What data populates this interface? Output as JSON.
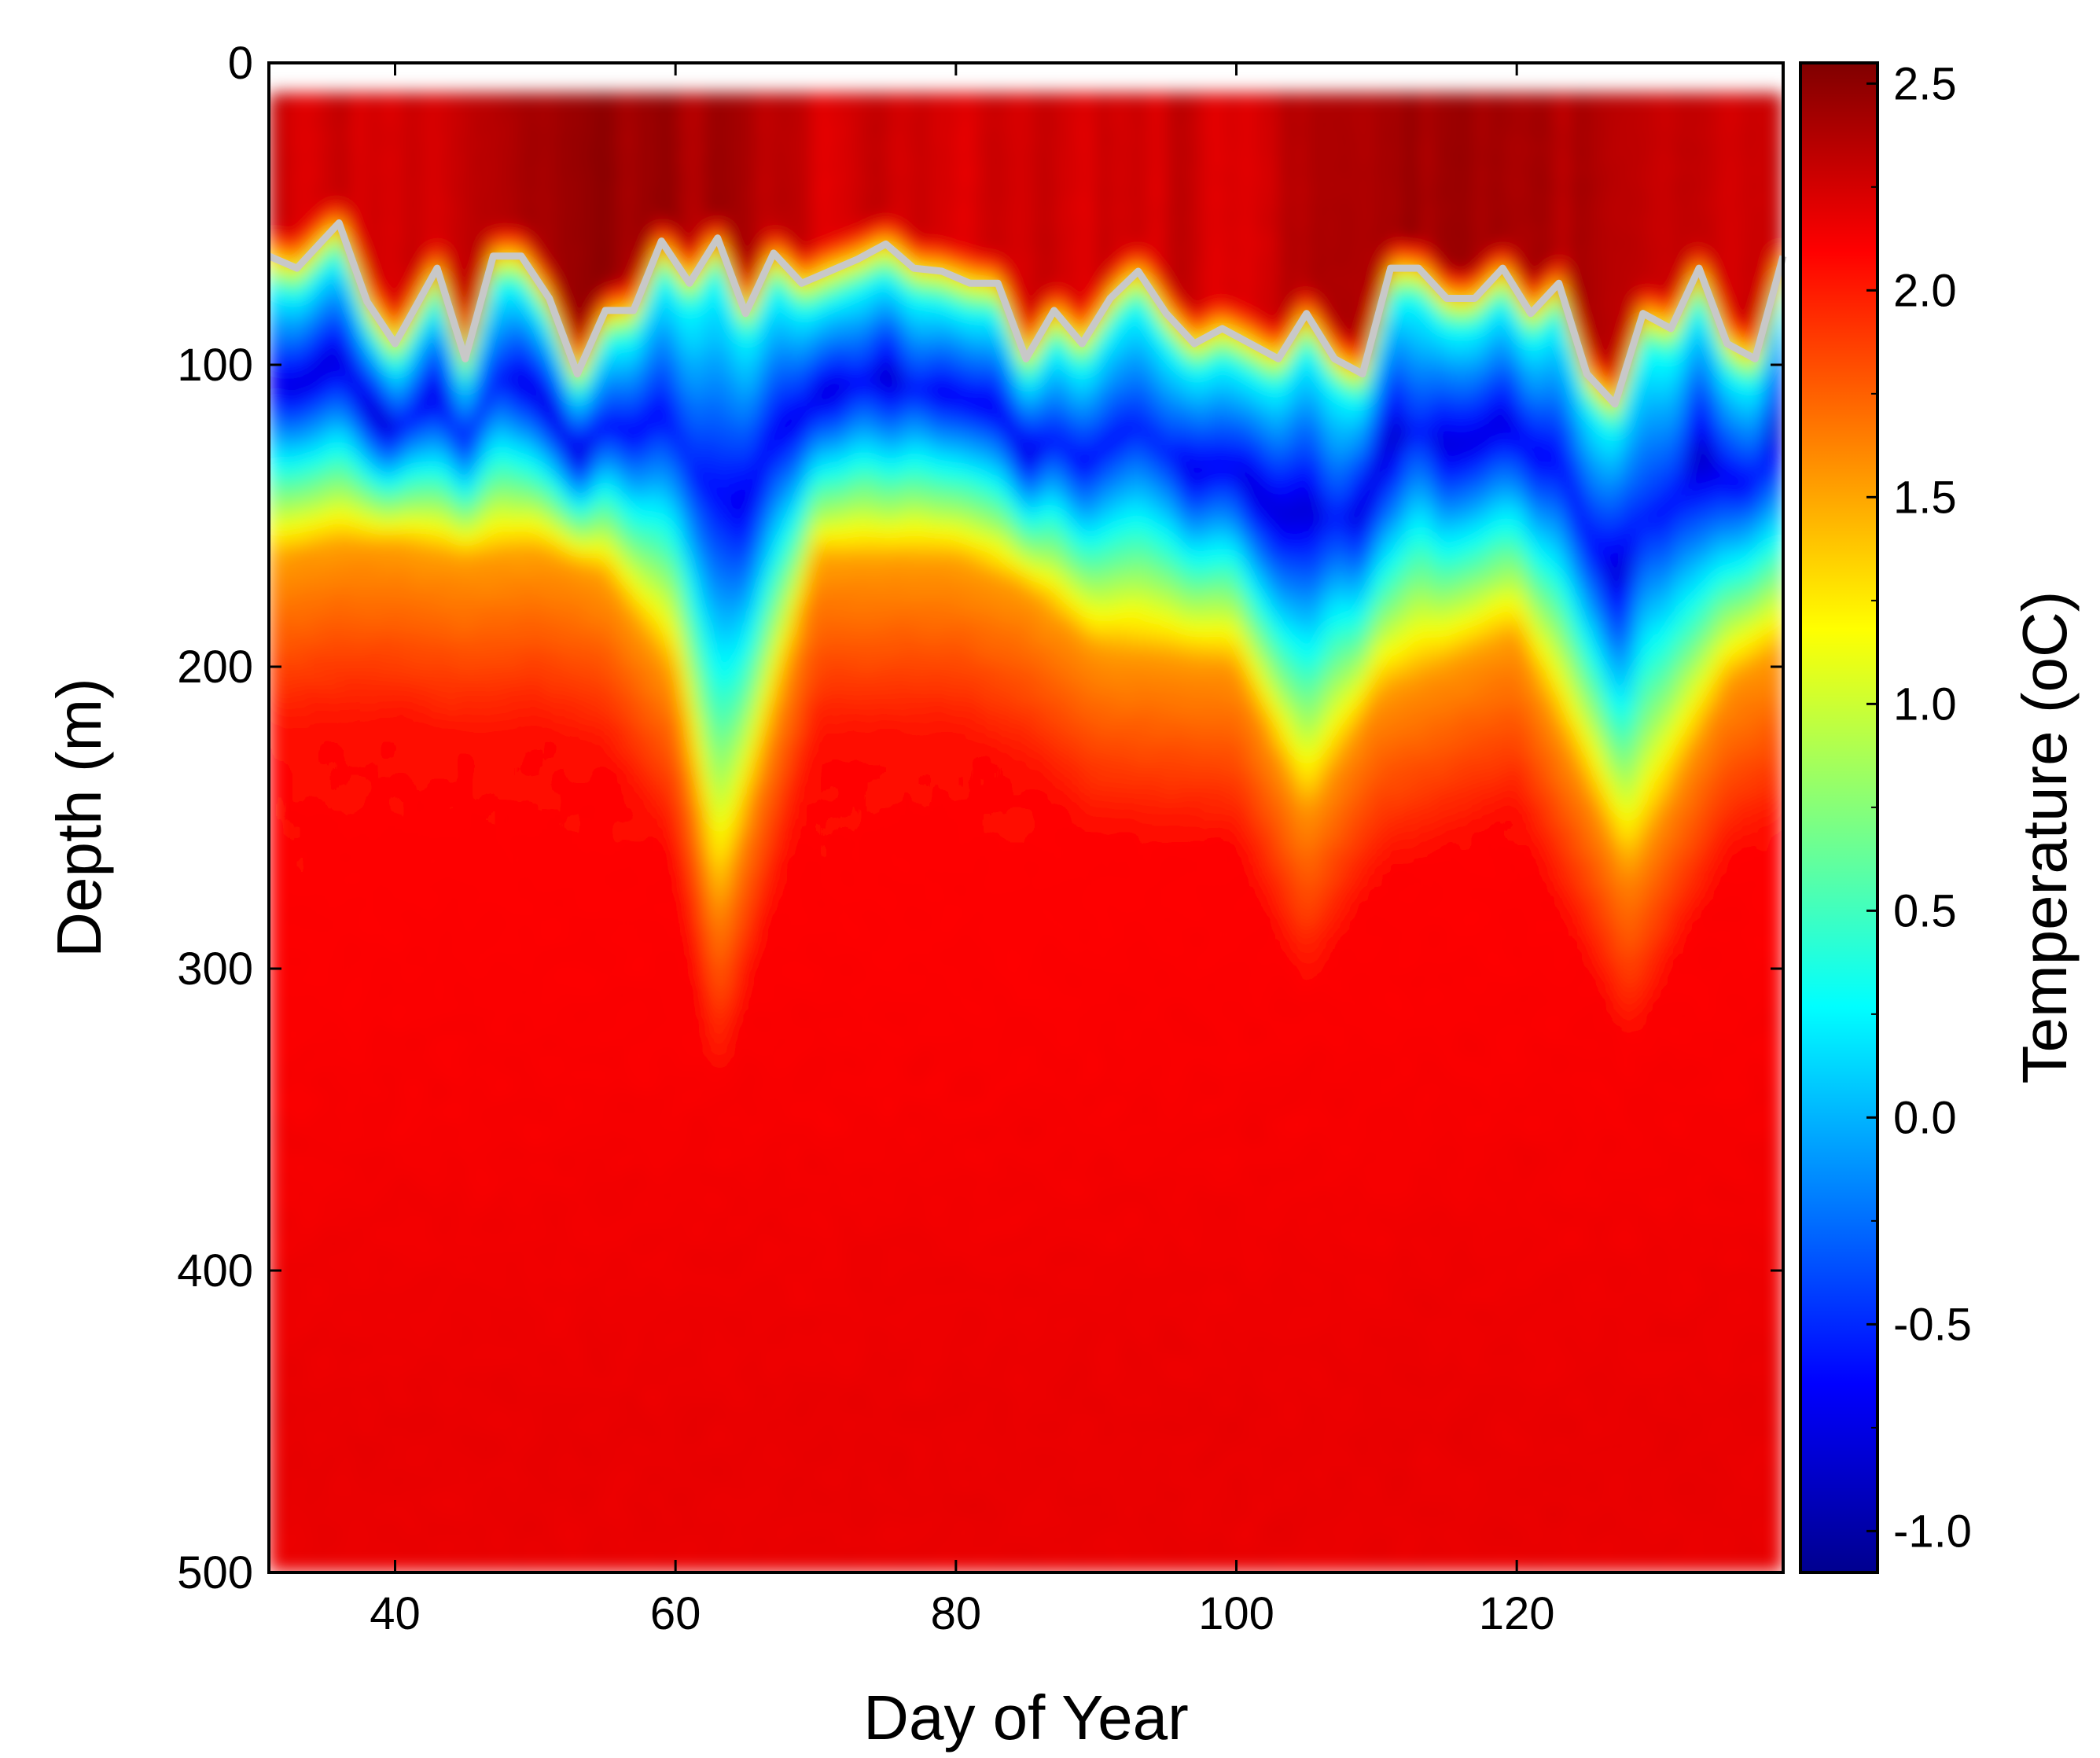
{
  "chart_data": {
    "type": "heatmap",
    "xlabel": "Day of Year",
    "ylabel": "Depth (m)",
    "colorbar_label": "Temperature (oC)",
    "xlim": [
      31,
      139
    ],
    "ylim": [
      0,
      500
    ],
    "y_inverted": true,
    "data_top_depth": 10,
    "x_ticks": [
      40,
      60,
      80,
      100,
      120
    ],
    "x_tick_labels": [
      "40",
      "60",
      "80",
      "100",
      "120"
    ],
    "y_ticks": [
      0,
      100,
      200,
      300,
      400,
      500
    ],
    "y_tick_labels": [
      "0",
      "100",
      "200",
      "300",
      "400",
      "500"
    ],
    "colorbar_range": [
      -1.1,
      2.55
    ],
    "colorbar_ticks": [
      2.5,
      2.0,
      1.5,
      1.0,
      0.5,
      0.0,
      -0.5,
      -1.0
    ],
    "colorbar_tick_labels": [
      "2.5",
      "2.0",
      "1.5",
      "1.0",
      "0.5",
      "0.0",
      "-0.5",
      "-1.0"
    ],
    "colormap": "jet",
    "mixed_layer_line_color": "#c8c8c8",
    "mixed_layer_depth": {
      "days": [
        31,
        33,
        36,
        38,
        40,
        43,
        45,
        47,
        49,
        51,
        53,
        55,
        57,
        59,
        61,
        63,
        65,
        67,
        69,
        71,
        73,
        75,
        77,
        79,
        81,
        83,
        85,
        87,
        89,
        91,
        93,
        95,
        97,
        99,
        101,
        103,
        105,
        107,
        109,
        111,
        113,
        115,
        117,
        119,
        121,
        123,
        125,
        127,
        129,
        131,
        133,
        135,
        137,
        139
      ],
      "depths": [
        64,
        68,
        53,
        79,
        93,
        68,
        98,
        64,
        64,
        78,
        103,
        82,
        82,
        59,
        73,
        58,
        83,
        63,
        73,
        69,
        65,
        60,
        68,
        69,
        73,
        73,
        98,
        82,
        93,
        78,
        69,
        83,
        93,
        88,
        93,
        98,
        83,
        98,
        103,
        68,
        68,
        78,
        78,
        68,
        83,
        73,
        103,
        113,
        83,
        88,
        68,
        93,
        98,
        64
      ]
    },
    "profiles_sample": {
      "days": [
        31,
        36,
        40,
        45,
        50,
        55,
        60,
        63,
        70,
        80,
        85,
        90,
        100,
        105,
        110,
        120,
        128,
        135,
        139
      ],
      "thermocline_bottom_depth": [
        165,
        160,
        160,
        165,
        162,
        170,
        205,
        285,
        165,
        165,
        175,
        195,
        200,
        250,
        210,
        190,
        270,
        205,
        195
      ]
    }
  }
}
